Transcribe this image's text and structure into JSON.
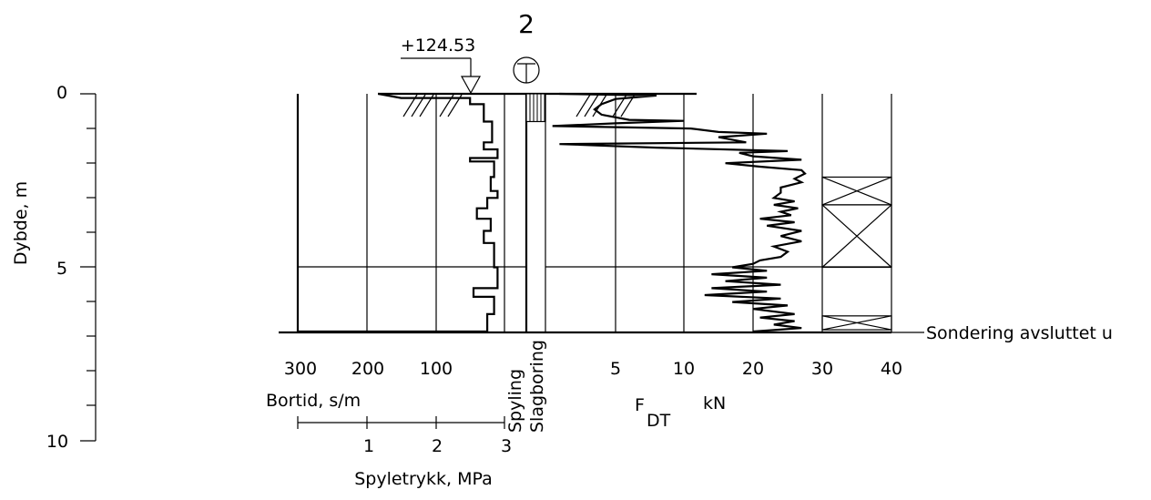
{
  "borehole": {
    "number": "2",
    "elevation": "+124.53"
  },
  "depth_axis": {
    "title": "Dybde, m",
    "tick_labels": [
      "0",
      "5",
      "10"
    ]
  },
  "bortid_axis": {
    "title": "Bortid, s/m",
    "tick_labels": [
      "300",
      "200",
      "100"
    ]
  },
  "spyletrykk_axis": {
    "title": "Spyletrykk, MPa",
    "tick_labels": [
      "1",
      "2",
      "3"
    ]
  },
  "column_labels": {
    "spyling": "Spyling",
    "slagboring": "Slagboring"
  },
  "force_axis": {
    "title_main": "F",
    "title_sub": "DT",
    "unit": "kN",
    "tick_labels": [
      "5",
      "10",
      "20",
      "30",
      "40"
    ]
  },
  "termination_label": "Sondering avsluttet u",
  "chart_data": {
    "type": "line",
    "depth_range_m": [
      0,
      10
    ],
    "termination_depth_m": 6.9,
    "bortid_profile": {
      "x_unit": "s/m",
      "points": [
        [
          0.0,
          183
        ],
        [
          0.12,
          150
        ],
        [
          0.12,
          50
        ],
        [
          0.3,
          50
        ],
        [
          0.3,
          30
        ],
        [
          0.8,
          30
        ],
        [
          0.8,
          18
        ],
        [
          1.4,
          18
        ],
        [
          1.4,
          30
        ],
        [
          1.6,
          30
        ],
        [
          1.6,
          10
        ],
        [
          1.85,
          10
        ],
        [
          1.85,
          50
        ],
        [
          1.95,
          50
        ],
        [
          1.95,
          15
        ],
        [
          2.4,
          15
        ],
        [
          2.4,
          20
        ],
        [
          2.8,
          20
        ],
        [
          2.8,
          10
        ],
        [
          3.0,
          10
        ],
        [
          3.0,
          25
        ],
        [
          3.3,
          25
        ],
        [
          3.3,
          40
        ],
        [
          3.6,
          40
        ],
        [
          3.6,
          20
        ],
        [
          3.95,
          20
        ],
        [
          3.95,
          30
        ],
        [
          4.3,
          30
        ],
        [
          4.3,
          15
        ],
        [
          5.0,
          15
        ],
        [
          5.0,
          10
        ],
        [
          5.6,
          10
        ],
        [
          5.6,
          45
        ],
        [
          5.85,
          45
        ],
        [
          5.85,
          15
        ],
        [
          6.35,
          15
        ],
        [
          6.35,
          25
        ],
        [
          6.85,
          25
        ],
        [
          6.85,
          300
        ]
      ]
    },
    "force_profile": {
      "x_unit": "kN",
      "note_axis": "piecewise scale 0-5, 5-10, 10-40",
      "points": [
        [
          0.0,
          1.0
        ],
        [
          0.05,
          8.0
        ],
        [
          0.15,
          5.0
        ],
        [
          0.3,
          4.0
        ],
        [
          0.45,
          3.5
        ],
        [
          0.6,
          4.0
        ],
        [
          0.75,
          6.0
        ],
        [
          0.78,
          10.0
        ],
        [
          0.85,
          5.0
        ],
        [
          0.93,
          0.5
        ],
        [
          1.0,
          11.0
        ],
        [
          1.1,
          15.0
        ],
        [
          1.15,
          22.0
        ],
        [
          1.25,
          15.0
        ],
        [
          1.4,
          19.0
        ],
        [
          1.45,
          1.0
        ],
        [
          1.55,
          8.0
        ],
        [
          1.65,
          25.0
        ],
        [
          1.7,
          18.0
        ],
        [
          1.8,
          20.0
        ],
        [
          1.9,
          27.0
        ],
        [
          2.0,
          16.0
        ],
        [
          2.1,
          21.0
        ],
        [
          2.2,
          27.0
        ],
        [
          2.3,
          27.5
        ],
        [
          2.45,
          26.0
        ],
        [
          2.55,
          27.0
        ],
        [
          2.7,
          24.0
        ],
        [
          2.85,
          24.0
        ],
        [
          3.0,
          23.0
        ],
        [
          3.1,
          26.0
        ],
        [
          3.2,
          23.0
        ],
        [
          3.3,
          26.5
        ],
        [
          3.4,
          24.0
        ],
        [
          3.5,
          25.5
        ],
        [
          3.6,
          21.0
        ],
        [
          3.7,
          26.0
        ],
        [
          3.8,
          22.0
        ],
        [
          3.95,
          27.0
        ],
        [
          4.1,
          24.0
        ],
        [
          4.25,
          27.0
        ],
        [
          4.4,
          23.0
        ],
        [
          4.55,
          25.0
        ],
        [
          4.7,
          24.0
        ],
        [
          4.8,
          21.0
        ],
        [
          4.9,
          20.0
        ],
        [
          5.0,
          17.0
        ],
        [
          5.1,
          22.0
        ],
        [
          5.2,
          14.0
        ],
        [
          5.3,
          22.0
        ],
        [
          5.4,
          16.0
        ],
        [
          5.5,
          24.0
        ],
        [
          5.6,
          14.0
        ],
        [
          5.7,
          22.0
        ],
        [
          5.8,
          13.0
        ],
        [
          5.9,
          24.0
        ],
        [
          6.0,
          17.0
        ],
        [
          6.1,
          25.0
        ],
        [
          6.2,
          20.0
        ],
        [
          6.35,
          26.0
        ],
        [
          6.45,
          21.0
        ],
        [
          6.55,
          26.0
        ],
        [
          6.65,
          23.0
        ],
        [
          6.75,
          27.0
        ],
        [
          6.85,
          20.0
        ]
      ]
    },
    "shaded_interval_m": [
      0.0,
      0.8
    ],
    "sample_boxes_m": [
      [
        2.4,
        3.2
      ],
      [
        3.2,
        5.0
      ],
      [
        6.4,
        6.8
      ]
    ]
  }
}
